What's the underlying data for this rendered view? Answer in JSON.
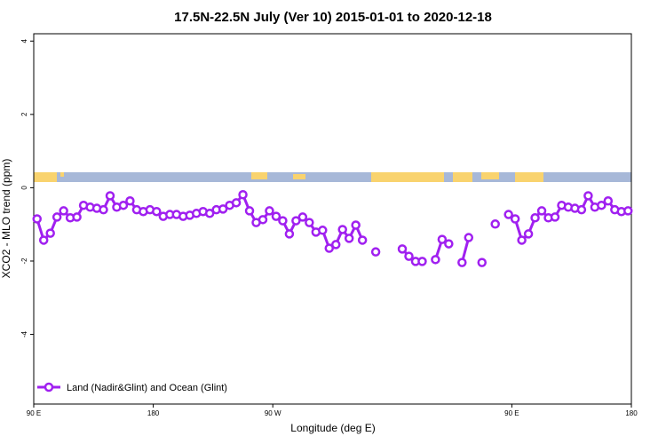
{
  "chart_data": {
    "type": "line",
    "title": "17.5N-22.5N July (Ver 10)   2015-01-01 to 2020-12-18",
    "x_label": "Longitude (deg E)",
    "y_label": "XCO2 - MLO trend (ppm)",
    "x": [
      92.5,
      97.5,
      102.5,
      107.5,
      112.5,
      117.5,
      122.5,
      127.5,
      132.5,
      137.5,
      142.5,
      147.5,
      152.5,
      157.5,
      162.5,
      167.5,
      172.5,
      177.5,
      182.5,
      187.5,
      192.5,
      197.5,
      202.5,
      207.5,
      212.5,
      217.5,
      222.5,
      227.5,
      232.5,
      237.5,
      242.5,
      247.5,
      252.5,
      257.5,
      262.5,
      267.5,
      272.5,
      277.5,
      282.5,
      287.5,
      292.5,
      297.5,
      302.5,
      307.5,
      312.5,
      317.5,
      322.5,
      327.5,
      332.5,
      337.5,
      342.5,
      347.5,
      352.5,
      357.5,
      362.5,
      367.5,
      372.5,
      377.5,
      382.5,
      387.5,
      392.5,
      397.5,
      402.5,
      407.5,
      412.5,
      417.5,
      422.5,
      427.5,
      432.5,
      437.5,
      442.5,
      447.5,
      452.5,
      457.5,
      462.5,
      467.5,
      472.5,
      477.5,
      482.5,
      487.5,
      492.5,
      497.5,
      502.5,
      507.5,
      512.5,
      517.5,
      522.5,
      527.5,
      532.5,
      537.5
    ],
    "series": [
      {
        "name": "Land (Nadir&Glint) and Ocean (Glint)",
        "color": "#a020f0",
        "values": [
          -0.85,
          -1.43,
          -1.24,
          -0.8,
          -0.63,
          -0.82,
          -0.8,
          -0.48,
          -0.53,
          -0.56,
          -0.6,
          -0.22,
          -0.53,
          -0.48,
          -0.36,
          -0.6,
          -0.65,
          -0.6,
          -0.65,
          -0.78,
          -0.73,
          -0.73,
          -0.78,
          -0.75,
          -0.7,
          -0.65,
          -0.7,
          -0.6,
          -0.58,
          -0.48,
          -0.41,
          -0.19,
          -0.63,
          -0.95,
          -0.87,
          -0.63,
          -0.78,
          -0.9,
          -1.26,
          -0.9,
          -0.8,
          -0.95,
          -1.21,
          -1.16,
          -1.65,
          -1.55,
          -1.14,
          -1.38,
          -1.02,
          -1.43,
          null,
          -1.75,
          null,
          null,
          null,
          -1.67,
          -1.87,
          -2.01,
          -2.01,
          null,
          -1.96,
          -1.41,
          -1.53,
          null,
          -2.04,
          -1.36,
          null,
          -2.04,
          null,
          -0.99,
          null,
          -0.73,
          -0.85,
          -1.43,
          -1.26,
          -0.82,
          -0.63,
          -0.82,
          -0.8,
          -0.48,
          -0.53,
          -0.56,
          -0.6,
          -0.22,
          -0.53,
          -0.48,
          -0.36,
          -0.6,
          -0.65,
          -0.63
        ]
      }
    ],
    "xlim": [
      90,
      540
    ],
    "xticks": [
      {
        "value": 90,
        "label": "90 E"
      },
      180,
      {
        "value": 270,
        "label": "90 W"
      },
      {
        "value": 450,
        "label": "90 E"
      },
      {
        "value": 540,
        "label": "180"
      }
    ],
    "ylim": [
      -5.9,
      4.2
    ],
    "yticks": [
      -4,
      -2,
      0,
      2,
      4
    ],
    "legend": "bottom-left"
  }
}
